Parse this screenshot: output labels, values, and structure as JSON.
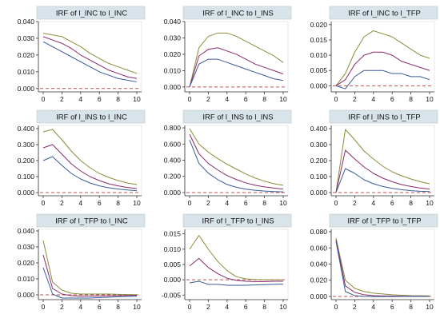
{
  "chart_data": [
    {
      "type": "line",
      "title": "IRF of l_INC to l_INC",
      "x": [
        0,
        1,
        2,
        3,
        4,
        5,
        6,
        7,
        8,
        9,
        10
      ],
      "ylim": [
        -0.002,
        0.04
      ],
      "yticks": [
        "0.000",
        "0.010",
        "0.020",
        "0.030",
        "0.040"
      ],
      "yticks_values": [
        0,
        0.01,
        0.02,
        0.03,
        0.04
      ],
      "xticks": [
        "0",
        "2",
        "4",
        "6",
        "8",
        "10"
      ],
      "zero_line": true,
      "series": [
        {
          "color": "#8c8c3a",
          "values": [
            0.033,
            0.032,
            0.031,
            0.028,
            0.025,
            0.021,
            0.018,
            0.015,
            0.013,
            0.011,
            0.009
          ]
        },
        {
          "color": "#8a2a6a",
          "values": [
            0.031,
            0.029,
            0.027,
            0.024,
            0.02,
            0.017,
            0.014,
            0.011,
            0.009,
            0.007,
            0.006
          ]
        },
        {
          "color": "#3a5a9a",
          "values": [
            0.028,
            0.025,
            0.022,
            0.019,
            0.016,
            0.013,
            0.01,
            0.008,
            0.006,
            0.005,
            0.004
          ]
        }
      ]
    },
    {
      "type": "line",
      "title": "IRF of l_INC to l_INS",
      "x": [
        0,
        1,
        2,
        3,
        4,
        5,
        6,
        7,
        8,
        9,
        10
      ],
      "ylim": [
        -0.003,
        0.04
      ],
      "yticks": [
        "0.000",
        "0.010",
        "0.020",
        "0.030",
        "0.040"
      ],
      "yticks_values": [
        0,
        0.01,
        0.02,
        0.03,
        0.04
      ],
      "xticks": [
        "0",
        "2",
        "4",
        "6",
        "8",
        "10"
      ],
      "zero_line": true,
      "series": [
        {
          "color": "#8c8c3a",
          "values": [
            0,
            0.024,
            0.031,
            0.033,
            0.033,
            0.031,
            0.028,
            0.025,
            0.022,
            0.019,
            0.015
          ]
        },
        {
          "color": "#8a2a6a",
          "values": [
            0,
            0.019,
            0.023,
            0.024,
            0.022,
            0.02,
            0.017,
            0.014,
            0.012,
            0.01,
            0.008
          ]
        },
        {
          "color": "#3a5a9a",
          "values": [
            0,
            0.014,
            0.017,
            0.017,
            0.015,
            0.013,
            0.011,
            0.009,
            0.007,
            0.005,
            0.004
          ]
        }
      ]
    },
    {
      "type": "line",
      "title": "IRF of l_INC to l_TFP",
      "x": [
        0,
        1,
        2,
        3,
        4,
        5,
        6,
        7,
        8,
        9,
        10
      ],
      "ylim": [
        -0.002,
        0.021
      ],
      "yticks": [
        "0.000",
        "0.005",
        "0.010",
        "0.015",
        "0.020"
      ],
      "yticks_values": [
        0,
        0.005,
        0.01,
        0.015,
        0.02
      ],
      "xticks": [
        "0",
        "2",
        "4",
        "6",
        "8",
        "10"
      ],
      "zero_line": true,
      "series": [
        {
          "color": "#8c8c3a",
          "values": [
            0,
            0.004,
            0.011,
            0.016,
            0.018,
            0.017,
            0.016,
            0.014,
            0.012,
            0.01,
            0.009
          ]
        },
        {
          "color": "#8a2a6a",
          "values": [
            0,
            0.002,
            0.007,
            0.01,
            0.011,
            0.011,
            0.01,
            0.008,
            0.007,
            0.006,
            0.005
          ]
        },
        {
          "color": "#3a5a9a",
          "values": [
            0,
            -0.001,
            0.003,
            0.005,
            0.005,
            0.005,
            0.004,
            0.004,
            0.003,
            0.003,
            0.002
          ]
        }
      ]
    },
    {
      "type": "line",
      "title": "IRF of l_INS to l_INC",
      "x": [
        0,
        1,
        2,
        3,
        4,
        5,
        6,
        7,
        8,
        9,
        10
      ],
      "ylim": [
        -0.02,
        0.42
      ],
      "yticks": [
        "0.000",
        "0.100",
        "0.200",
        "0.300",
        "0.400"
      ],
      "yticks_values": [
        0,
        0.1,
        0.2,
        0.3,
        0.4
      ],
      "xticks": [
        "0",
        "2",
        "4",
        "6",
        "8",
        "10"
      ],
      "zero_line": true,
      "series": [
        {
          "color": "#8c8c3a",
          "values": [
            0.38,
            0.395,
            0.33,
            0.26,
            0.2,
            0.155,
            0.12,
            0.095,
            0.075,
            0.06,
            0.05
          ]
        },
        {
          "color": "#8a2a6a",
          "values": [
            0.28,
            0.3,
            0.24,
            0.18,
            0.135,
            0.1,
            0.075,
            0.055,
            0.042,
            0.032,
            0.025
          ]
        },
        {
          "color": "#3a5a9a",
          "values": [
            0.2,
            0.225,
            0.17,
            0.12,
            0.085,
            0.06,
            0.042,
            0.03,
            0.022,
            0.016,
            0.012
          ]
        }
      ]
    },
    {
      "type": "line",
      "title": "IRF of l_INS to l_INS",
      "x": [
        0,
        1,
        2,
        3,
        4,
        5,
        6,
        7,
        8,
        9,
        10
      ],
      "ylim": [
        -0.04,
        0.83
      ],
      "yticks": [
        "0.000",
        "0.200",
        "0.400",
        "0.600",
        "0.800"
      ],
      "yticks_values": [
        0,
        0.2,
        0.4,
        0.6,
        0.8
      ],
      "xticks": [
        "0",
        "2",
        "4",
        "6",
        "8",
        "10"
      ],
      "zero_line": true,
      "series": [
        {
          "color": "#8c8c3a",
          "values": [
            0.79,
            0.6,
            0.5,
            0.42,
            0.35,
            0.29,
            0.23,
            0.18,
            0.14,
            0.11,
            0.09
          ]
        },
        {
          "color": "#8a2a6a",
          "values": [
            0.72,
            0.48,
            0.36,
            0.28,
            0.21,
            0.16,
            0.12,
            0.09,
            0.07,
            0.055,
            0.042
          ]
        },
        {
          "color": "#3a5a9a",
          "values": [
            0.65,
            0.36,
            0.24,
            0.16,
            0.1,
            0.065,
            0.042,
            0.028,
            0.018,
            0.012,
            0.008
          ]
        }
      ]
    },
    {
      "type": "line",
      "title": "IRF of l_INS to l_TFP",
      "x": [
        0,
        1,
        2,
        3,
        4,
        5,
        6,
        7,
        8,
        9,
        10
      ],
      "ylim": [
        -0.02,
        0.42
      ],
      "yticks": [
        "0.000",
        "0.100",
        "0.200",
        "0.300",
        "0.400"
      ],
      "yticks_values": [
        0,
        0.1,
        0.2,
        0.3,
        0.4
      ],
      "xticks": [
        "0",
        "2",
        "4",
        "6",
        "8",
        "10"
      ],
      "zero_line": true,
      "series": [
        {
          "color": "#8c8c3a",
          "values": [
            0,
            0.395,
            0.33,
            0.26,
            0.21,
            0.165,
            0.13,
            0.105,
            0.085,
            0.068,
            0.055
          ]
        },
        {
          "color": "#8a2a6a",
          "values": [
            0,
            0.265,
            0.21,
            0.16,
            0.12,
            0.09,
            0.068,
            0.05,
            0.038,
            0.028,
            0.022
          ]
        },
        {
          "color": "#3a5a9a",
          "values": [
            0,
            0.15,
            0.12,
            0.08,
            0.055,
            0.038,
            0.026,
            0.018,
            0.012,
            0.008,
            0.006
          ]
        }
      ]
    },
    {
      "type": "line",
      "title": "IRF of l_TFP to l_INC",
      "x": [
        0,
        1,
        2,
        3,
        4,
        5,
        6,
        7,
        8,
        9,
        10
      ],
      "ylim": [
        -0.003,
        0.041
      ],
      "yticks": [
        "0.000",
        "0.010",
        "0.020",
        "0.030",
        "0.040"
      ],
      "yticks_values": [
        0,
        0.01,
        0.02,
        0.03,
        0.04
      ],
      "xticks": [
        "0",
        "2",
        "4",
        "6",
        "8",
        "10"
      ],
      "zero_line": true,
      "series": [
        {
          "color": "#8c8c3a",
          "values": [
            0.034,
            0.008,
            0.003,
            0.001,
            0.0005,
            0.0005,
            0.0005,
            0.0005,
            0.0003,
            0.0002,
            0.0001
          ]
        },
        {
          "color": "#8a2a6a",
          "values": [
            0.025,
            0.004,
            0.0005,
            -0.0005,
            -0.0008,
            -0.0008,
            -0.0007,
            -0.0006,
            -0.0005,
            -0.0004,
            -0.0003
          ]
        },
        {
          "color": "#3a5a9a",
          "values": [
            0.017,
            0.0005,
            -0.002,
            -0.002,
            -0.002,
            -0.002,
            -0.0017,
            -0.0015,
            -0.0012,
            -0.001,
            -0.0008
          ]
        }
      ]
    },
    {
      "type": "line",
      "title": "IRF of l_TFP to l_INS",
      "x": [
        0,
        1,
        2,
        3,
        4,
        5,
        6,
        7,
        8,
        9,
        10
      ],
      "ylim": [
        -0.0065,
        0.0165
      ],
      "yticks": [
        "-0.005",
        "0.000",
        "0.005",
        "0.010",
        "0.015"
      ],
      "yticks_values": [
        -0.005,
        0,
        0.005,
        0.01,
        0.015
      ],
      "xticks": [
        "0",
        "2",
        "4",
        "6",
        "8",
        "10"
      ],
      "zero_line": true,
      "series": [
        {
          "color": "#8c8c3a",
          "values": [
            0.01,
            0.0145,
            0.01,
            0.006,
            0.003,
            0.001,
            0.0003,
            0.0001,
            0.0,
            0.0,
            0.0
          ]
        },
        {
          "color": "#8a2a6a",
          "values": [
            0.0045,
            0.007,
            0.004,
            0.002,
            0.0005,
            -0.0002,
            -0.0005,
            -0.0006,
            -0.0006,
            -0.0005,
            -0.0005
          ]
        },
        {
          "color": "#3a5a9a",
          "values": [
            -0.001,
            -0.0005,
            -0.0015,
            -0.0015,
            -0.0018,
            -0.0018,
            -0.0018,
            -0.0017,
            -0.0016,
            -0.0015,
            -0.0014
          ]
        }
      ]
    },
    {
      "type": "line",
      "title": "IRF of l_TFP to l_TFP",
      "x": [
        0,
        1,
        2,
        3,
        4,
        5,
        6,
        7,
        8,
        9,
        10
      ],
      "ylim": [
        -0.004,
        0.083
      ],
      "yticks": [
        "0.000",
        "0.020",
        "0.040",
        "0.060",
        "0.080"
      ],
      "yticks_values": [
        0,
        0.02,
        0.04,
        0.06,
        0.08
      ],
      "xticks": [
        "0",
        "2",
        "4",
        "6",
        "8",
        "10"
      ],
      "zero_line": true,
      "series": [
        {
          "color": "#8c8c3a",
          "values": [
            0.072,
            0.02,
            0.01,
            0.006,
            0.004,
            0.003,
            0.002,
            0.0015,
            0.001,
            0.0008,
            0.0006
          ]
        },
        {
          "color": "#8a2a6a",
          "values": [
            0.07,
            0.013,
            0.005,
            0.002,
            0.001,
            0.0006,
            0.0004,
            0.0003,
            0.0002,
            0.0001,
            0.0001
          ]
        },
        {
          "color": "#3a5a9a",
          "values": [
            0.068,
            0.006,
            0.001,
            0.0,
            -0.0002,
            -0.0002,
            -0.0002,
            -0.0001,
            -0.0001,
            0.0,
            0.0
          ]
        }
      ]
    }
  ],
  "colors": {
    "background": "#ffffff",
    "title_strip": "#d9e4ea",
    "zero_line": "#c0504d",
    "axis": "#333333"
  }
}
